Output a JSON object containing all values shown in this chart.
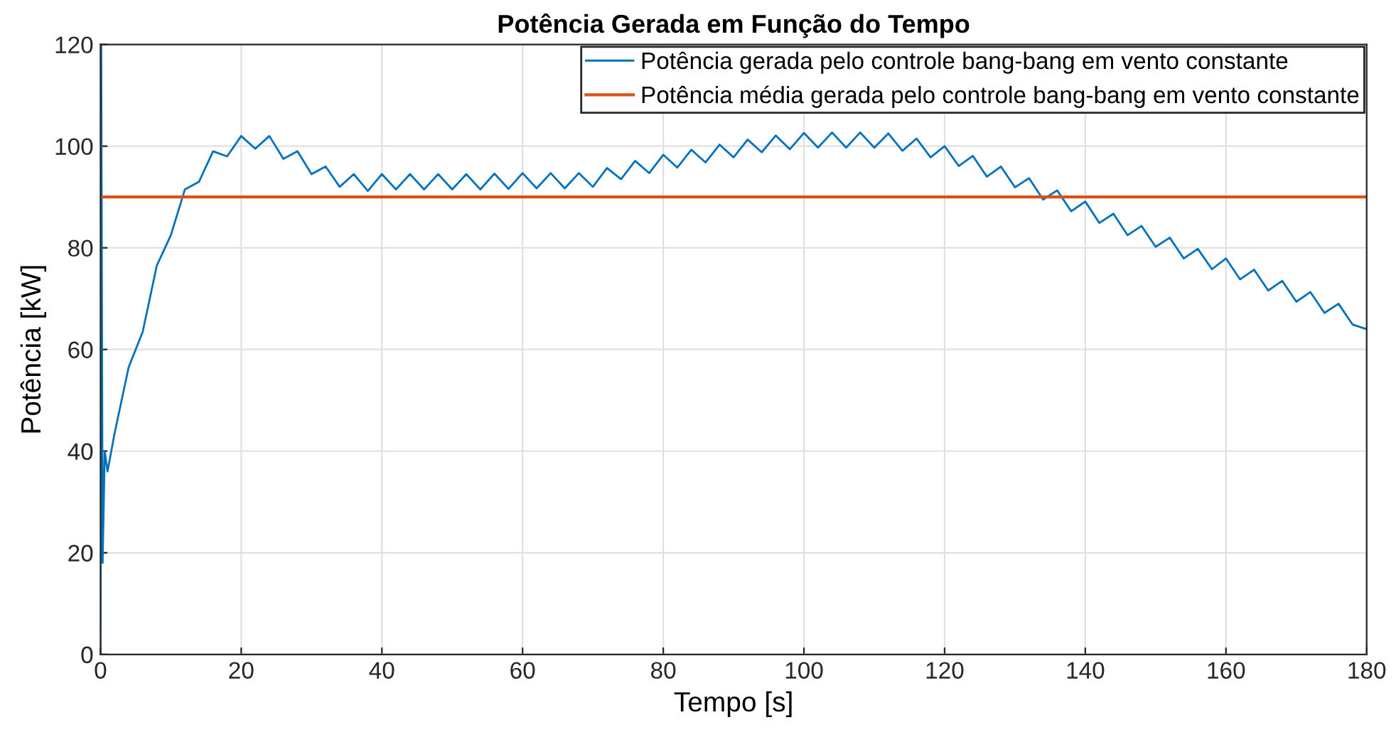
{
  "chart_data": {
    "type": "line",
    "title": "Potência Gerada em Função do Tempo",
    "xlabel": "Tempo [s]",
    "ylabel": "Potência [kW]",
    "series": [
      {
        "name": "Potência gerada pelo controle bang-bang em vento constante",
        "color": "#0072bd",
        "x": [
          0,
          0.1,
          0.3,
          0.6,
          1,
          2,
          4,
          6,
          8,
          10,
          12,
          14,
          16,
          18,
          20,
          22,
          24,
          26,
          28,
          30,
          32,
          34,
          36,
          38,
          40,
          42,
          44,
          46,
          48,
          50,
          52,
          54,
          56,
          58,
          60,
          62,
          64,
          66,
          68,
          70,
          72,
          74,
          76,
          78,
          80,
          82,
          84,
          86,
          88,
          90,
          92,
          94,
          96,
          98,
          100,
          102,
          104,
          106,
          108,
          110,
          112,
          114,
          116,
          118,
          120,
          122,
          124,
          126,
          128,
          130,
          132,
          134,
          136,
          138,
          140,
          142,
          144,
          146,
          148,
          150,
          152,
          154,
          156,
          158,
          160,
          162,
          164,
          166,
          168,
          170,
          172,
          174,
          176,
          178,
          180
        ],
        "values": [
          0,
          120,
          18,
          40,
          36,
          43.5,
          56.5,
          63.5,
          76.5,
          82.5,
          91.5,
          93,
          99,
          98,
          102,
          99.5,
          102,
          97.5,
          99,
          94.5,
          96,
          92,
          94.5,
          91.2,
          94.5,
          91.5,
          94.5,
          91.5,
          94.5,
          91.5,
          94.5,
          91.5,
          94.6,
          91.6,
          94.7,
          91.7,
          94.7,
          91.7,
          94.7,
          92,
          95.7,
          93.5,
          97.1,
          94.7,
          98.3,
          95.8,
          99.3,
          96.8,
          100.3,
          97.8,
          101.3,
          98.8,
          102.1,
          99.4,
          102.6,
          99.7,
          102.7,
          99.7,
          102.7,
          99.7,
          102.5,
          99.1,
          101.5,
          97.8,
          100,
          96.1,
          98.1,
          94,
          96,
          91.9,
          93.7,
          89.5,
          91.3,
          87.2,
          89.1,
          84.9,
          86.7,
          82.5,
          84.3,
          80.2,
          82,
          77.9,
          79.8,
          75.8,
          77.9,
          73.8,
          75.7,
          71.6,
          73.5,
          69.4,
          71.3,
          67.2,
          69,
          64.9,
          64
        ]
      },
      {
        "name": "Potência média gerada pelo controle bang-bang em vento constante",
        "color": "#d95319",
        "x": [
          0,
          180
        ],
        "values": [
          90,
          90
        ]
      }
    ],
    "xlim": [
      0,
      180
    ],
    "xticks": [
      0,
      20,
      40,
      60,
      80,
      100,
      120,
      140,
      160,
      180
    ],
    "ylim": [
      0,
      120
    ],
    "yticks": [
      0,
      20,
      40,
      60,
      80,
      100,
      120
    ],
    "grid": true,
    "legend": "top right"
  }
}
